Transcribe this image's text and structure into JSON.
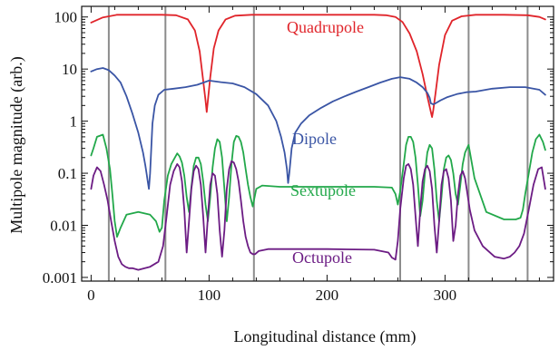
{
  "chart_data": {
    "type": "line",
    "title": "",
    "xlabel": "Longitudinal distance  (mm)",
    "ylabel": "Multipole magnitude   (arb.)",
    "xlim": [
      -8,
      392
    ],
    "ylim": [
      0.00085,
      160
    ],
    "yscale": "log",
    "grid": false,
    "legend": "inline labels",
    "x_ticks": [
      0,
      100,
      200,
      300
    ],
    "x_tick_labels": [
      "0",
      "100",
      "200",
      "300"
    ],
    "y_ticks": [
      0.001,
      0.01,
      0.1,
      1,
      10,
      100
    ],
    "y_tick_labels": [
      "0.001",
      "0.01",
      "0.1",
      "1",
      "10",
      "100"
    ],
    "vertical_lines_x": [
      15,
      63,
      138,
      262,
      320,
      370
    ],
    "series": [
      {
        "name": "Quadrupole",
        "label": "Quadrupole",
        "color": "#e0242a",
        "x": [
          0,
          10,
          22,
          40,
          60,
          72,
          82,
          88,
          92,
          95,
          97,
          98,
          99,
          101,
          104,
          108,
          114,
          122,
          136,
          160,
          200,
          240,
          250,
          258,
          264,
          270,
          276,
          281,
          285,
          288,
          289,
          290,
          292,
          295,
          300,
          306,
          314,
          326,
          350,
          370,
          380,
          385
        ],
        "values": [
          78,
          98,
          110,
          110,
          110,
          108,
          90,
          55,
          22,
          6,
          2.5,
          1.5,
          2.5,
          7,
          25,
          55,
          90,
          106,
          110,
          110,
          110,
          110,
          108,
          100,
          80,
          48,
          22,
          8,
          3,
          1.5,
          1.2,
          1.6,
          3.5,
          12,
          45,
          85,
          103,
          110,
          110,
          108,
          100,
          90
        ]
      },
      {
        "name": "Dipole",
        "label": "Dipole",
        "color": "#3a55a5",
        "x": [
          0,
          5,
          10,
          15,
          20,
          25,
          30,
          35,
          40,
          44,
          46,
          47,
          48,
          49,
          50,
          51,
          52,
          54,
          57,
          62,
          70,
          80,
          90,
          100,
          110,
          120,
          130,
          140,
          150,
          157,
          161,
          164,
          166,
          167,
          168,
          170,
          173,
          178,
          185,
          195,
          205,
          215,
          225,
          235,
          245,
          255,
          262,
          270,
          276,
          281,
          285,
          287,
          288,
          290,
          292,
          296,
          302,
          310,
          318,
          326,
          340,
          355,
          368,
          380,
          385
        ],
        "values": [
          9,
          10,
          10.5,
          9.5,
          7.5,
          5.5,
          3,
          1.4,
          0.6,
          0.25,
          0.14,
          0.1,
          0.07,
          0.05,
          0.1,
          0.3,
          0.9,
          2,
          3.2,
          4,
          4.2,
          4.5,
          5,
          6,
          5.6,
          5.3,
          4.5,
          3.3,
          2,
          1,
          0.5,
          0.25,
          0.12,
          0.065,
          0.1,
          0.3,
          0.6,
          0.9,
          1.3,
          1.8,
          2.4,
          3,
          3.7,
          4.5,
          5.5,
          6.5,
          7,
          6.5,
          5.5,
          4.5,
          3.5,
          2.8,
          2.2,
          2.1,
          2.2,
          2.5,
          2.9,
          3.3,
          3.6,
          3.7,
          4.2,
          4.5,
          4.5,
          4,
          3.2
        ]
      },
      {
        "name": "Sextupole",
        "label": "Sextupole",
        "color": "#22a84a",
        "x": [
          0,
          2,
          5,
          10,
          13,
          16,
          18,
          20,
          22,
          25,
          30,
          40,
          50,
          55,
          58,
          60,
          62,
          65,
          68,
          71,
          73,
          75,
          77,
          79,
          81,
          83,
          85,
          87,
          89,
          91,
          93,
          95,
          97,
          99,
          101,
          103,
          105,
          107,
          109,
          111,
          113,
          115,
          117,
          119,
          121,
          123,
          125,
          127,
          129,
          131,
          133,
          135,
          137,
          140,
          145,
          160,
          200,
          240,
          255,
          258,
          260,
          262,
          265,
          267,
          269,
          271,
          273,
          275,
          277,
          279,
          281,
          283,
          285,
          287,
          289,
          291,
          293,
          295,
          297,
          299,
          301,
          303,
          305,
          307,
          309,
          311,
          313,
          315,
          317,
          320,
          325,
          335,
          350,
          360,
          364,
          366,
          368,
          371,
          374,
          377,
          380,
          383,
          385
        ],
        "values": [
          0.22,
          0.3,
          0.5,
          0.55,
          0.3,
          0.12,
          0.04,
          0.012,
          0.006,
          0.009,
          0.016,
          0.018,
          0.016,
          0.012,
          0.0075,
          0.009,
          0.03,
          0.09,
          0.15,
          0.2,
          0.24,
          0.21,
          0.16,
          0.09,
          0.035,
          0.018,
          0.055,
          0.14,
          0.2,
          0.2,
          0.15,
          0.07,
          0.025,
          0.012,
          0.035,
          0.13,
          0.3,
          0.45,
          0.4,
          0.2,
          0.05,
          0.012,
          0.035,
          0.15,
          0.4,
          0.52,
          0.5,
          0.4,
          0.25,
          0.12,
          0.06,
          0.035,
          0.023,
          0.05,
          0.058,
          0.055,
          0.055,
          0.055,
          0.053,
          0.04,
          0.025,
          0.045,
          0.15,
          0.35,
          0.5,
          0.5,
          0.4,
          0.2,
          0.06,
          0.015,
          0.03,
          0.1,
          0.25,
          0.35,
          0.3,
          0.12,
          0.03,
          0.012,
          0.035,
          0.12,
          0.2,
          0.22,
          0.18,
          0.1,
          0.04,
          0.025,
          0.06,
          0.15,
          0.25,
          0.35,
          0.08,
          0.018,
          0.013,
          0.013,
          0.014,
          0.02,
          0.04,
          0.1,
          0.25,
          0.45,
          0.55,
          0.4,
          0.28
        ]
      },
      {
        "name": "Octupole",
        "label": "Octupole",
        "color": "#6c1c84",
        "x": [
          0,
          2,
          5,
          8,
          11,
          14,
          17,
          20,
          23,
          26,
          29,
          32,
          35,
          40,
          50,
          57,
          61,
          64,
          67,
          70,
          73,
          75,
          77,
          79,
          81,
          83,
          85,
          87,
          89,
          91,
          93,
          95,
          97,
          99,
          101,
          103,
          105,
          107,
          109,
          111,
          113,
          115,
          117,
          119,
          121,
          123,
          125,
          127,
          129,
          131,
          133,
          135,
          137,
          139,
          142,
          150,
          200,
          240,
          252,
          255,
          258,
          260,
          262,
          265,
          267,
          269,
          271,
          273,
          275,
          277,
          279,
          281,
          283,
          285,
          287,
          289,
          291,
          293,
          295,
          297,
          299,
          301,
          303,
          305,
          307,
          309,
          311,
          313,
          315,
          317,
          319,
          321,
          325,
          332,
          342,
          350,
          355,
          359,
          363,
          367,
          371,
          375,
          379,
          382,
          385
        ],
        "values": [
          0.05,
          0.09,
          0.13,
          0.11,
          0.06,
          0.03,
          0.012,
          0.005,
          0.0025,
          0.0018,
          0.0016,
          0.0015,
          0.0015,
          0.0014,
          0.0016,
          0.002,
          0.004,
          0.015,
          0.06,
          0.11,
          0.15,
          0.13,
          0.07,
          0.02,
          0.003,
          0.012,
          0.05,
          0.11,
          0.14,
          0.12,
          0.06,
          0.015,
          0.003,
          0.015,
          0.06,
          0.1,
          0.09,
          0.04,
          0.008,
          0.0025,
          0.008,
          0.05,
          0.12,
          0.17,
          0.16,
          0.12,
          0.07,
          0.03,
          0.012,
          0.006,
          0.004,
          0.003,
          0.0028,
          0.0028,
          0.0032,
          0.0035,
          0.0035,
          0.0034,
          0.003,
          0.0024,
          0.0022,
          0.005,
          0.02,
          0.08,
          0.14,
          0.15,
          0.12,
          0.06,
          0.015,
          0.004,
          0.02,
          0.07,
          0.12,
          0.14,
          0.11,
          0.05,
          0.01,
          0.003,
          0.012,
          0.06,
          0.11,
          0.12,
          0.08,
          0.03,
          0.005,
          0.01,
          0.04,
          0.09,
          0.11,
          0.08,
          0.04,
          0.02,
          0.008,
          0.004,
          0.0025,
          0.0023,
          0.0025,
          0.003,
          0.004,
          0.007,
          0.02,
          0.06,
          0.12,
          0.13,
          0.05
        ]
      }
    ]
  }
}
